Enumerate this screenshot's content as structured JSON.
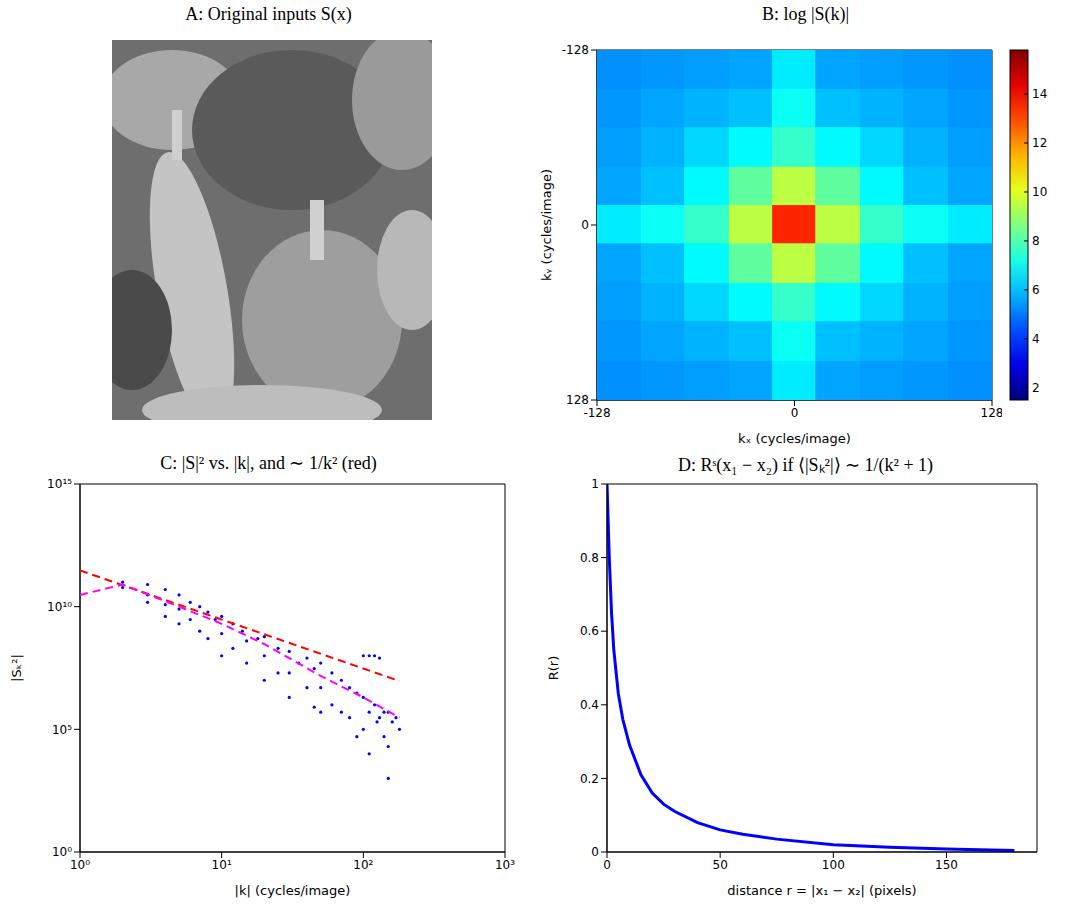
{
  "chart_data": [
    {
      "type": "image",
      "title": "A: Original inputs S(x)"
    },
    {
      "type": "heatmap",
      "title": "B: log |S(k)|",
      "x_label": "kₓ (cycles/image)",
      "y_label": "kᵧ (cycles/image)",
      "xlim": [
        -128,
        128
      ],
      "ylim": [
        128,
        -128
      ],
      "xticks": [
        -128,
        0,
        128
      ],
      "yticks": [
        -128,
        0,
        128
      ],
      "x": [
        -114,
        -85,
        -57,
        -28,
        0,
        28,
        57,
        85,
        114
      ],
      "y": [
        -114,
        -85,
        -57,
        -28,
        0,
        28,
        57,
        85,
        114
      ],
      "cells": [
        [
          5.3,
          5.4,
          5.5,
          5.6,
          6.6,
          5.6,
          5.5,
          5.4,
          5.3
        ],
        [
          5.4,
          5.6,
          5.8,
          6.0,
          7.0,
          6.0,
          5.8,
          5.6,
          5.4
        ],
        [
          5.5,
          5.8,
          6.3,
          6.8,
          7.6,
          6.8,
          6.3,
          5.8,
          5.5
        ],
        [
          5.6,
          6.0,
          6.8,
          8.2,
          9.5,
          8.2,
          6.8,
          6.0,
          5.6
        ],
        [
          6.6,
          7.0,
          7.6,
          9.5,
          13.5,
          9.5,
          7.6,
          7.0,
          6.6
        ],
        [
          5.6,
          6.0,
          6.8,
          8.2,
          9.5,
          8.2,
          6.8,
          6.0,
          5.6
        ],
        [
          5.5,
          5.8,
          6.3,
          6.8,
          7.6,
          6.8,
          6.3,
          5.8,
          5.5
        ],
        [
          5.4,
          5.6,
          5.8,
          6.0,
          7.0,
          6.0,
          5.8,
          5.6,
          5.4
        ],
        [
          5.3,
          5.4,
          5.5,
          5.6,
          6.6,
          5.6,
          5.5,
          5.4,
          5.3
        ]
      ],
      "color_range": [
        1.5,
        15.8
      ],
      "color_ticks": [
        2,
        4,
        6,
        8,
        10,
        12,
        14
      ]
    },
    {
      "type": "scatter",
      "title": "C: |S|² vs. |k|, and ∼ 1/k² (red)",
      "x_label": "|k| (cycles/image)",
      "y_label": "|Sₖ²|",
      "log": true,
      "xlim": [
        1,
        1000
      ],
      "ylim": [
        1,
        1000000000000000.0
      ],
      "xticks": [
        {
          "value": 1,
          "label": "10⁰"
        },
        {
          "value": 10,
          "label": "10¹"
        },
        {
          "value": 100,
          "label": "10²"
        },
        {
          "value": 1000,
          "label": "10³"
        }
      ],
      "yticks": [
        {
          "value": 1,
          "label": "10⁰"
        },
        {
          "value": 100000,
          "label": "10⁵"
        },
        {
          "value": 10000000000,
          "label": "10¹⁰"
        },
        {
          "value": 1000000000000000.0,
          "label": "10¹⁵"
        }
      ],
      "series": [
        {
          "type": "scatter",
          "color": "#0000ff",
          "marker": "dot",
          "x": [
            2,
            2,
            3,
            3,
            3,
            4,
            4,
            4,
            5,
            5,
            5,
            6,
            6,
            7,
            7,
            8,
            8,
            9,
            10,
            10,
            10,
            12,
            12,
            14,
            15,
            15,
            18,
            20,
            20,
            20,
            25,
            25,
            30,
            30,
            30,
            35,
            40,
            40,
            45,
            50,
            50,
            50,
            60,
            60,
            70,
            70,
            80,
            80,
            90,
            100,
            100,
            100,
            110,
            110,
            120,
            120,
            125,
            130,
            130,
            140,
            140,
            150,
            150,
            160,
            170,
            180,
            45,
            90,
            150,
            110
          ],
          "values": [
            100000000000.0,
            60000000000.0,
            80000000000.0,
            30000000000.0,
            15000000000.0,
            50000000000.0,
            12000000000.0,
            4000000000.0,
            30000000000.0,
            8000000000.0,
            2000000000.0,
            15000000000.0,
            3000000000.0,
            10000000000.0,
            1000000000.0,
            6000000000.0,
            500000000.0,
            3000000000.0,
            4000000000.0,
            800000000.0,
            100000000.0,
            2000000000.0,
            200000000.0,
            1000000000.0,
            400000000.0,
            50000000.0,
            500000000.0,
            600000000.0,
            100000000.0,
            10000000.0,
            200000000.0,
            20000000.0,
            150000000.0,
            20000000.0,
            2000000.0,
            50000000.0,
            80000000.0,
            5000000.0,
            30000000.0,
            50000000.0,
            5000000.0,
            500000.0,
            20000000.0,
            1000000.0,
            10000000.0,
            500000.0,
            5000000.0,
            300000.0,
            3000000.0,
            100000000.0,
            2000000.0,
            100000.0,
            100000000.0,
            500000.0,
            100000000.0,
            1000000.0,
            200000.0,
            80000000.0,
            300000.0,
            500000.0,
            50000.0,
            500000.0,
            20000.0,
            200000.0,
            300000.0,
            100000.0,
            800000.0,
            50000.0,
            1000.0,
            10000.0
          ]
        },
        {
          "type": "line",
          "color": "#ff0000",
          "line_style": "dashed",
          "x": [
            1,
            180
          ],
          "values": [
            300000000000.0,
            9260000.0
          ]
        },
        {
          "type": "line",
          "color": "#ff00ff",
          "line_style": "dashed",
          "x": [
            1,
            2,
            5,
            10,
            20,
            50,
            100,
            180
          ],
          "values": [
            30000000000.0,
            80000000000.0,
            10000000000.0,
            2000000000.0,
            300000000.0,
            15000000.0,
            2000000.0,
            300000.0
          ]
        }
      ]
    },
    {
      "type": "line",
      "title": "D: Rˢ(x₁ − x₂) if ⟨|Sₖ²|⟩ ∼ 1/(k² + 1)",
      "x_label": "distance r = |x₁ − x₂| (pixels)",
      "y_label": "R(r)",
      "xlim": [
        0,
        190
      ],
      "ylim": [
        0,
        1
      ],
      "xticks": [
        0,
        50,
        100,
        150
      ],
      "yticks": [
        0,
        0.2,
        0.4,
        0.6,
        0.8,
        1
      ],
      "color": "#0000ff",
      "x": [
        0,
        1,
        2,
        3,
        5,
        7,
        10,
        15,
        20,
        25,
        30,
        40,
        50,
        60,
        75,
        100,
        125,
        150,
        180
      ],
      "values": [
        1,
        0.8,
        0.65,
        0.55,
        0.43,
        0.36,
        0.29,
        0.21,
        0.16,
        0.13,
        0.11,
        0.08,
        0.06,
        0.048,
        0.035,
        0.02,
        0.013,
        0.008,
        0.004
      ]
    }
  ]
}
